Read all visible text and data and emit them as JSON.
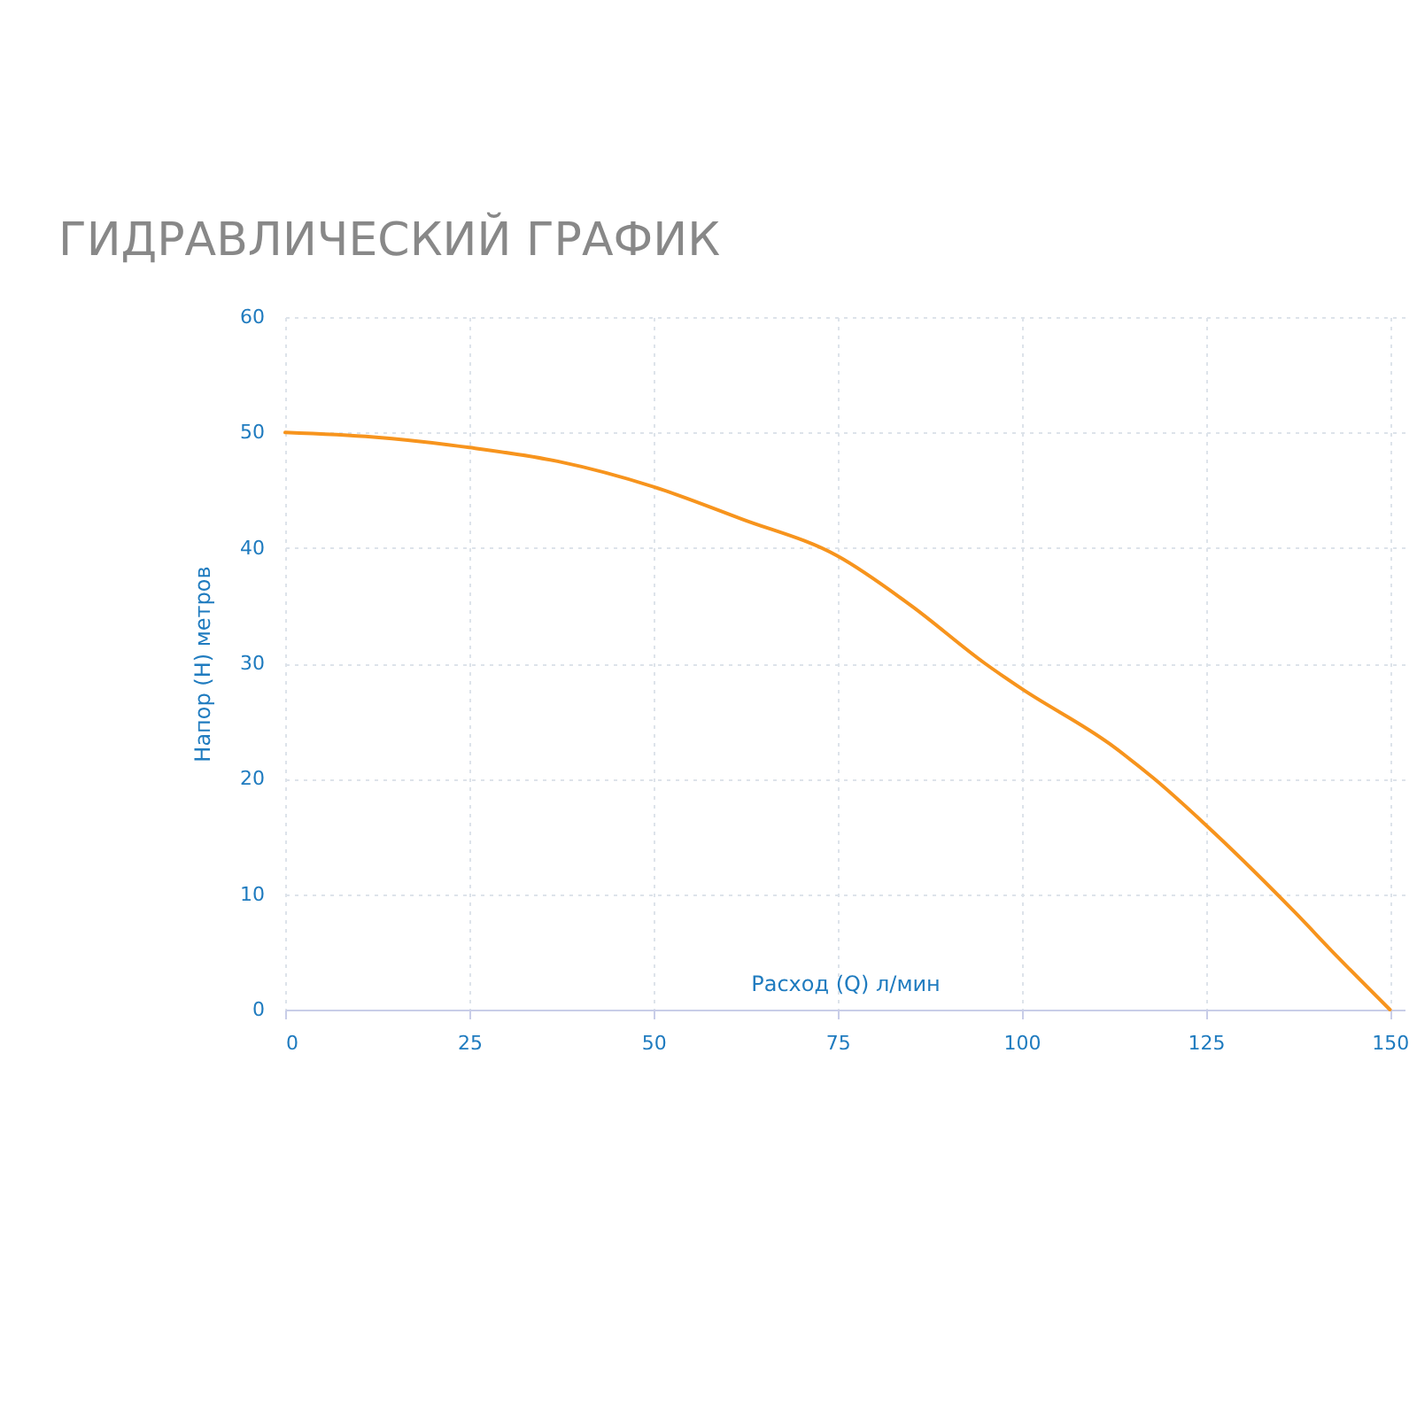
{
  "chart_data": {
    "type": "line",
    "title": "ГИДРАВЛИЧЕСКИЙ ГРАФИК",
    "xlabel": "Расход (Q) л/мин",
    "ylabel": "Напор (Н) метров",
    "x": [
      0,
      12,
      25,
      37,
      50,
      62,
      75,
      85,
      95,
      100,
      112,
      118,
      125,
      137,
      143,
      150
    ],
    "series": [
      {
        "color": "#f7941d",
        "values": [
          50,
          49.6,
          48.7,
          47.5,
          45.3,
          42.5,
          39.3,
          35,
          30,
          27.8,
          23,
          20,
          16,
          8.5,
          4.5,
          0
        ]
      }
    ],
    "xlim": [
      0,
      152
    ],
    "xticks": [
      0,
      25,
      50,
      75,
      100,
      125,
      150
    ],
    "ylim": [
      0,
      60
    ],
    "yticks": [
      0,
      10,
      20,
      30,
      40,
      50,
      60
    ],
    "grid": true,
    "marker": "none",
    "line_style": "solid"
  }
}
